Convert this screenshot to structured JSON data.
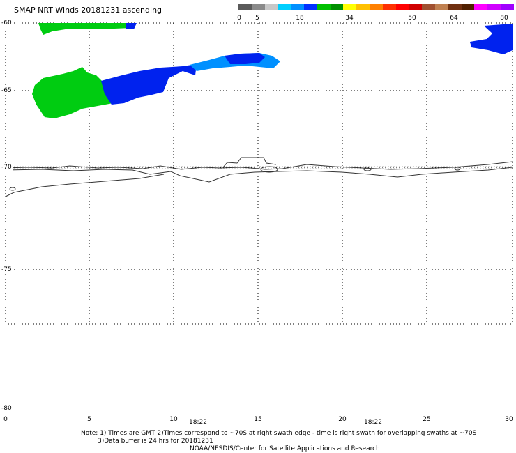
{
  "title": "SMAP NRT Winds 20181231 ascending",
  "colorbar": {
    "labels": [
      "0",
      "5",
      "18",
      "34",
      "50",
      "64",
      "80"
    ],
    "colors": [
      "#5a5a5a",
      "#8a8a8a",
      "#c8c8c8",
      "#00cfff",
      "#0090ff",
      "#0030ff",
      "#00c000",
      "#009000",
      "#ffff00",
      "#ffc000",
      "#ff8000",
      "#ff3000",
      "#ff0000",
      "#d00000",
      "#a05030",
      "#c08050",
      "#703010",
      "#502000",
      "#ff00ff",
      "#d000ff",
      "#a000ff"
    ]
  },
  "axes": {
    "lat_ticks": [
      "-60",
      "-65",
      "-70",
      "-75",
      "-80"
    ],
    "lon_ticks": [
      "0",
      "5",
      "10",
      "15",
      "20",
      "25",
      "30"
    ]
  },
  "times": [
    "18:22",
    "18:22"
  ],
  "notes": {
    "line1": "Note: 1) Times are GMT 2)Times correspond to ~70S at right swath edge - time is right swath for overlapping swaths at ~70S",
    "line2": "3)Data buffer is 24 hrs for 20181231",
    "line3": "NOAA/NESDIS/Center for Satellite Applications and Research"
  },
  "wind_colors": {
    "green": "#00cc11",
    "blue": "#0022ee",
    "lightblue": "#0090ff"
  }
}
